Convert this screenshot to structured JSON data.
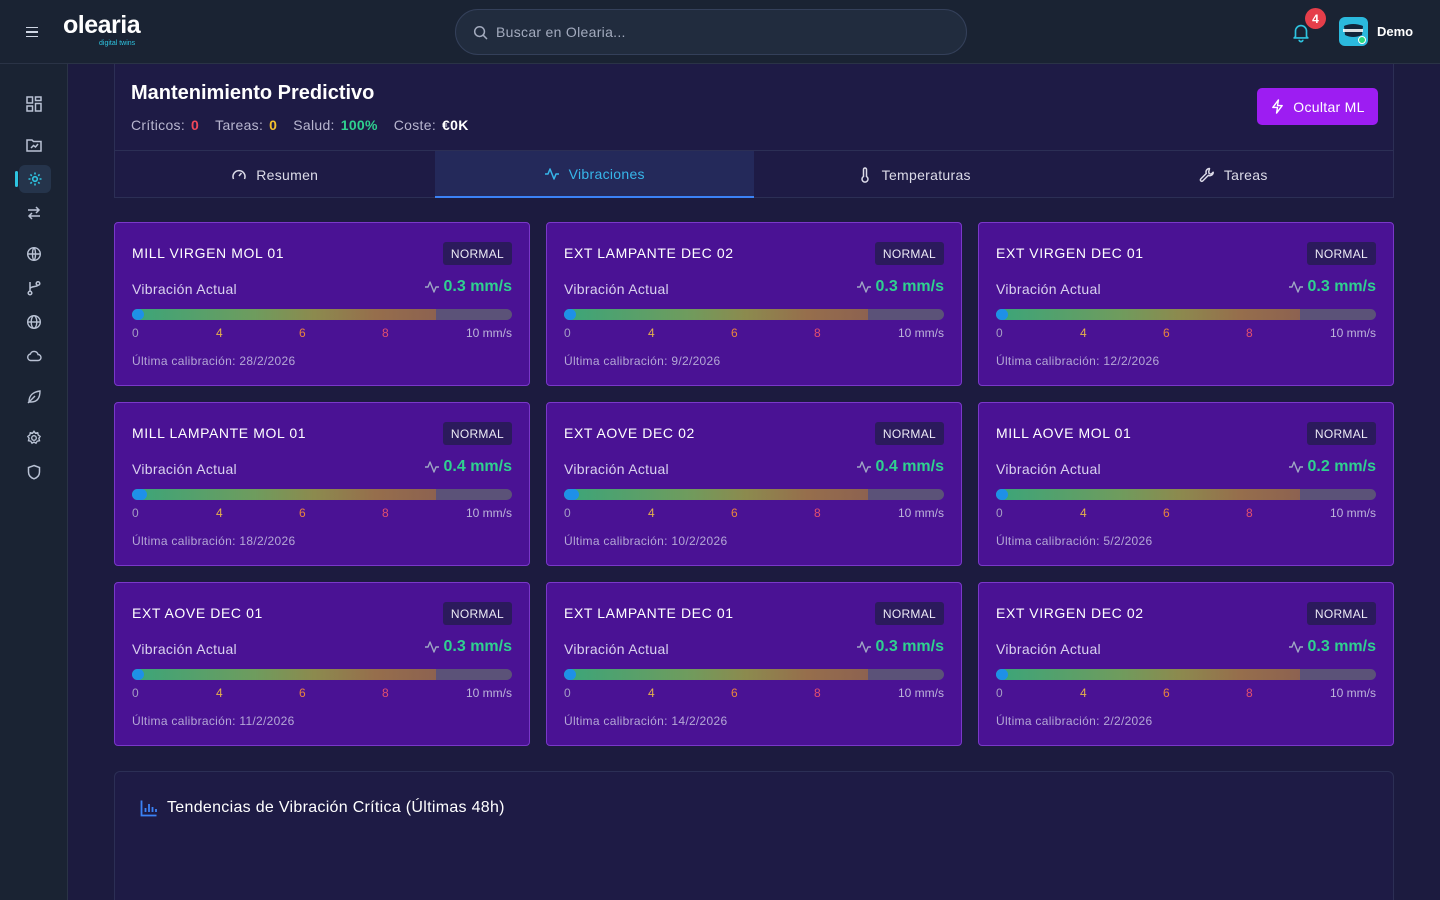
{
  "brand": {
    "name": "olearia",
    "tagline": "digital twins"
  },
  "search": {
    "placeholder": "Buscar en Olearia..."
  },
  "notifications": {
    "count": "4"
  },
  "user": {
    "name": "Demo"
  },
  "sidebar": {
    "items": [
      {
        "icon": "grid-icon"
      },
      {
        "icon": "folder-chart-icon"
      },
      {
        "icon": "gear-cog-icon",
        "active": true
      },
      {
        "icon": "arrows-exchange-icon"
      },
      {
        "icon": "globe-network-icon"
      },
      {
        "icon": "branch-icon"
      },
      {
        "icon": "globe-icon"
      },
      {
        "icon": "cloud-icon"
      },
      {
        "icon": "leaf-icon"
      },
      {
        "icon": "settings-icon"
      },
      {
        "icon": "shield-icon"
      }
    ]
  },
  "header": {
    "title": "Mantenimiento Predictivo",
    "stats": [
      {
        "label": "Críticos:",
        "value": "0",
        "color": "#f0485a"
      },
      {
        "label": "Tareas:",
        "value": "0",
        "color": "#f2c12e"
      },
      {
        "label": "Salud:",
        "value": "100%",
        "color": "#2fd18f"
      },
      {
        "label": "Coste:",
        "value": "€0K",
        "color": "#ffffff"
      }
    ],
    "ml_button": "Ocultar ML"
  },
  "tabs": [
    {
      "label": "Resumen",
      "icon": "gauge-icon"
    },
    {
      "label": "Vibraciones",
      "icon": "activity-icon",
      "active": true
    },
    {
      "label": "Temperaturas",
      "icon": "thermometer-icon"
    },
    {
      "label": "Tareas",
      "icon": "wrench-icon"
    }
  ],
  "scale": {
    "ticks": [
      "0",
      "4",
      "6",
      "8",
      "10 mm/s"
    ],
    "max": 10
  },
  "machines": [
    {
      "name": "MILL VIRGEN MOL 01",
      "status": "NORMAL",
      "label": "Vibración Actual",
      "value": "0.3 mm/s",
      "level": 0.3,
      "calibration": "Última calibración: 28/2/2026"
    },
    {
      "name": "EXT LAMPANTE DEC 02",
      "status": "NORMAL",
      "label": "Vibración Actual",
      "value": "0.3 mm/s",
      "level": 0.3,
      "calibration": "Última calibración: 9/2/2026"
    },
    {
      "name": "EXT VIRGEN DEC 01",
      "status": "NORMAL",
      "label": "Vibración Actual",
      "value": "0.3 mm/s",
      "level": 0.3,
      "calibration": "Última calibración: 12/2/2026"
    },
    {
      "name": "MILL LAMPANTE MOL 01",
      "status": "NORMAL",
      "label": "Vibración Actual",
      "value": "0.4 mm/s",
      "level": 0.4,
      "calibration": "Última calibración: 18/2/2026"
    },
    {
      "name": "EXT AOVE DEC 02",
      "status": "NORMAL",
      "label": "Vibración Actual",
      "value": "0.4 mm/s",
      "level": 0.4,
      "calibration": "Última calibración: 10/2/2026"
    },
    {
      "name": "MILL AOVE MOL 01",
      "status": "NORMAL",
      "label": "Vibración Actual",
      "value": "0.2 mm/s",
      "level": 0.2,
      "calibration": "Última calibración: 5/2/2026"
    },
    {
      "name": "EXT AOVE DEC 01",
      "status": "NORMAL",
      "label": "Vibración Actual",
      "value": "0.3 mm/s",
      "level": 0.3,
      "calibration": "Última calibración: 11/2/2026"
    },
    {
      "name": "EXT LAMPANTE DEC 01",
      "status": "NORMAL",
      "label": "Vibración Actual",
      "value": "0.3 mm/s",
      "level": 0.3,
      "calibration": "Última calibración: 14/2/2026"
    },
    {
      "name": "EXT VIRGEN DEC 02",
      "status": "NORMAL",
      "label": "Vibración Actual",
      "value": "0.3 mm/s",
      "level": 0.3,
      "calibration": "Última calibración: 2/2/2026"
    }
  ],
  "trend": {
    "title": "Tendencias de Vibración Crítica (Últimas 48h)"
  }
}
